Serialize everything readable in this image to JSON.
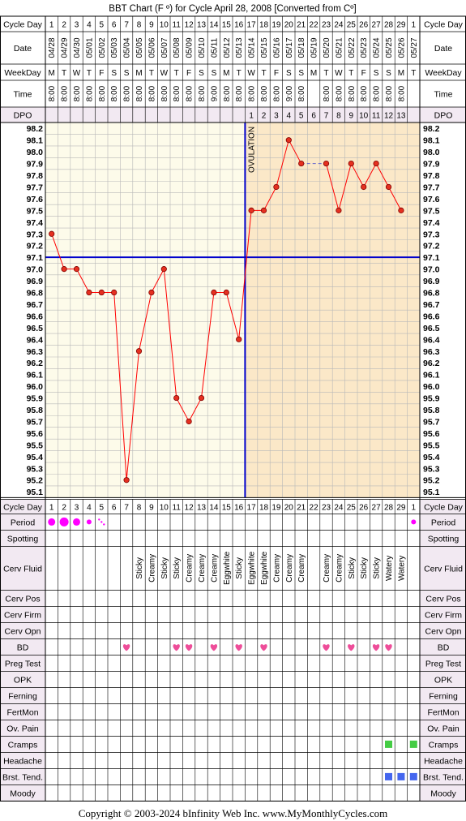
{
  "title": "BBT Chart (F º) for Cycle April 28, 2008  [Converted from Cº]",
  "copyright": "Copyright © 2003-2024 bInfinity Web Inc.     www.MyMonthlyCycles.com",
  "row_labels": {
    "cycle_day": "Cycle Day",
    "date": "Date",
    "weekday": "WeekDay",
    "time": "Time",
    "dpo": "DPO"
  },
  "ovulation_label": "OVULATION",
  "colors": {
    "pre_bg": "#fdfbea",
    "post_bg": "#fbe8c8",
    "line": "#ff0000",
    "marker_fill": "#e53020",
    "coverline": "#0000cc",
    "ovulation": "#0000cc",
    "heart": "#ee4d99",
    "period": "#ff00ff",
    "cramps": "#44cc44",
    "breast": "#4466ee",
    "header_bg": "#f2e9f2",
    "grid_border": "#000000"
  },
  "columns": [
    {
      "cd": "1",
      "date": "04/28",
      "wd": "M",
      "time": "8:00",
      "dpo": ""
    },
    {
      "cd": "2",
      "date": "04/29",
      "wd": "T",
      "time": "8:00",
      "dpo": ""
    },
    {
      "cd": "3",
      "date": "04/30",
      "wd": "W",
      "time": "8:00",
      "dpo": ""
    },
    {
      "cd": "4",
      "date": "05/01",
      "wd": "T",
      "time": "8:00",
      "dpo": ""
    },
    {
      "cd": "5",
      "date": "05/02",
      "wd": "F",
      "time": "8:00",
      "dpo": ""
    },
    {
      "cd": "6",
      "date": "05/03",
      "wd": "S",
      "time": "8:00",
      "dpo": ""
    },
    {
      "cd": "7",
      "date": "05/04",
      "wd": "S",
      "time": "8:00",
      "dpo": ""
    },
    {
      "cd": "8",
      "date": "05/05",
      "wd": "M",
      "time": "8:00",
      "dpo": ""
    },
    {
      "cd": "9",
      "date": "05/06",
      "wd": "T",
      "time": "8:00",
      "dpo": ""
    },
    {
      "cd": "10",
      "date": "05/07",
      "wd": "W",
      "time": "8:00",
      "dpo": ""
    },
    {
      "cd": "11",
      "date": "05/08",
      "wd": "T",
      "time": "8:00",
      "dpo": ""
    },
    {
      "cd": "12",
      "date": "05/09",
      "wd": "F",
      "time": "8:00",
      "dpo": ""
    },
    {
      "cd": "13",
      "date": "05/10",
      "wd": "S",
      "time": "8:00",
      "dpo": ""
    },
    {
      "cd": "14",
      "date": "05/11",
      "wd": "S",
      "time": "9:00",
      "dpo": ""
    },
    {
      "cd": "15",
      "date": "05/12",
      "wd": "M",
      "time": "8:00",
      "dpo": ""
    },
    {
      "cd": "16",
      "date": "05/13",
      "wd": "T",
      "time": "8:00",
      "dpo": ""
    },
    {
      "cd": "17",
      "date": "05/14",
      "wd": "W",
      "time": "8:00",
      "dpo": "1"
    },
    {
      "cd": "18",
      "date": "05/15",
      "wd": "T",
      "time": "8:00",
      "dpo": "2"
    },
    {
      "cd": "19",
      "date": "05/16",
      "wd": "F",
      "time": "8:00",
      "dpo": "3"
    },
    {
      "cd": "20",
      "date": "05/17",
      "wd": "S",
      "time": "9:00",
      "dpo": "4"
    },
    {
      "cd": "21",
      "date": "05/18",
      "wd": "S",
      "time": "8:00",
      "dpo": "5"
    },
    {
      "cd": "22",
      "date": "05/19",
      "wd": "M",
      "time": "",
      "dpo": "6"
    },
    {
      "cd": "23",
      "date": "05/20",
      "wd": "T",
      "time": "8:00",
      "dpo": "7"
    },
    {
      "cd": "24",
      "date": "05/21",
      "wd": "W",
      "time": "8:00",
      "dpo": "8"
    },
    {
      "cd": "25",
      "date": "05/22",
      "wd": "T",
      "time": "8:00",
      "dpo": "9"
    },
    {
      "cd": "26",
      "date": "05/23",
      "wd": "F",
      "time": "8:00",
      "dpo": "10"
    },
    {
      "cd": "27",
      "date": "05/24",
      "wd": "S",
      "time": "8:00",
      "dpo": "11"
    },
    {
      "cd": "28",
      "date": "05/25",
      "wd": "S",
      "time": "8:00",
      "dpo": "12"
    },
    {
      "cd": "29",
      "date": "05/26",
      "wd": "M",
      "time": "8:00",
      "dpo": "13"
    },
    {
      "cd": "1",
      "date": "05/27",
      "wd": "T",
      "time": "",
      "dpo": ""
    }
  ],
  "chart_data": {
    "type": "line",
    "title": "BBT Chart (F º) for Cycle April 28, 2008  [Converted from Cº]",
    "x": [
      1,
      2,
      3,
      4,
      5,
      6,
      7,
      8,
      9,
      10,
      11,
      12,
      13,
      14,
      15,
      16,
      17,
      18,
      19,
      20,
      21,
      22,
      23,
      24,
      25,
      26,
      27,
      28,
      29,
      30
    ],
    "series": [
      {
        "values": [
          97.3,
          97.0,
          97.0,
          96.8,
          96.8,
          96.8,
          95.2,
          96.3,
          96.8,
          97.0,
          95.9,
          95.7,
          95.9,
          96.8,
          96.8,
          96.4,
          97.5,
          97.5,
          97.7,
          98.1,
          97.9,
          null,
          97.9,
          97.5,
          97.9,
          97.7,
          97.9,
          97.7,
          97.5,
          null
        ]
      }
    ],
    "ylim": [
      95.1,
      98.2
    ],
    "y_ticks": [
      "98.2",
      "98.1",
      "98.0",
      "97.9",
      "97.8",
      "97.7",
      "97.6",
      "97.5",
      "97.4",
      "97.3",
      "97.2",
      "97.1",
      "97.0",
      "96.9",
      "96.8",
      "96.7",
      "96.6",
      "96.5",
      "96.4",
      "96.3",
      "96.2",
      "96.1",
      "96.0",
      "95.9",
      "95.8",
      "95.7",
      "95.6",
      "95.5",
      "95.4",
      "95.3",
      "95.2",
      "95.1"
    ],
    "coverline": 97.1,
    "ovulation_day": 16,
    "gap_bridge": [
      21,
      23
    ],
    "grid": true
  },
  "obs_rows": [
    {
      "key": "cycle_day",
      "label": "Cycle Day"
    },
    {
      "key": "period",
      "label": "Period"
    },
    {
      "key": "spotting",
      "label": "Spotting"
    },
    {
      "key": "cerv_fluid",
      "label": "Cerv Fluid"
    },
    {
      "key": "cerv_pos",
      "label": "Cerv Pos"
    },
    {
      "key": "cerv_firm",
      "label": "Cerv Firm"
    },
    {
      "key": "cerv_opn",
      "label": "Cerv Opn"
    },
    {
      "key": "bd",
      "label": "BD"
    },
    {
      "key": "preg_test",
      "label": "Preg Test"
    },
    {
      "key": "opk",
      "label": "OPK"
    },
    {
      "key": "ferning",
      "label": "Ferning"
    },
    {
      "key": "fertmon",
      "label": "FertMon"
    },
    {
      "key": "ov_pain",
      "label": "Ov. Pain"
    },
    {
      "key": "cramps",
      "label": "Cramps"
    },
    {
      "key": "headache",
      "label": "Headache"
    },
    {
      "key": "brst_tend",
      "label": "Brst. Tend."
    },
    {
      "key": "moody",
      "label": "Moody"
    }
  ],
  "observations": {
    "period": [
      "medium",
      "heavy",
      "medium",
      "light",
      "spot",
      "",
      "",
      "",
      "",
      "",
      "",
      "",
      "",
      "",
      "",
      "",
      "",
      "",
      "",
      "",
      "",
      "",
      "",
      "",
      "",
      "",
      "",
      "",
      "",
      "light"
    ],
    "cerv_fluid": [
      "",
      "",
      "",
      "",
      "",
      "",
      "",
      "Sticky",
      "Creamy",
      "Sticky",
      "Sticky",
      "Creamy",
      "Creamy",
      "Creamy",
      "Eggwhite",
      "Sticky",
      "Eggwhite",
      "Eggwhite",
      "Creamy",
      "Creamy",
      "Creamy",
      "",
      "Creamy",
      "Creamy",
      "Sticky",
      "Sticky",
      "Sticky",
      "Watery",
      "Watery",
      ""
    ],
    "bd": [
      false,
      false,
      false,
      false,
      false,
      false,
      true,
      false,
      false,
      false,
      true,
      true,
      false,
      true,
      false,
      true,
      false,
      true,
      false,
      false,
      false,
      false,
      true,
      false,
      true,
      false,
      true,
      true,
      false,
      false
    ],
    "cramps": [
      false,
      false,
      false,
      false,
      false,
      false,
      false,
      false,
      false,
      false,
      false,
      false,
      false,
      false,
      false,
      false,
      false,
      false,
      false,
      false,
      false,
      false,
      false,
      false,
      false,
      false,
      false,
      true,
      false,
      true
    ],
    "brst_tend": [
      false,
      false,
      false,
      false,
      false,
      false,
      false,
      false,
      false,
      false,
      false,
      false,
      false,
      false,
      false,
      false,
      false,
      false,
      false,
      false,
      false,
      false,
      false,
      false,
      false,
      false,
      false,
      true,
      true,
      true
    ]
  }
}
